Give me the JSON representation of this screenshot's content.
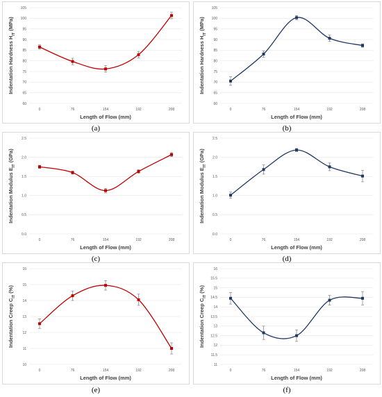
{
  "chart_data": [
    {
      "id": "a",
      "type": "line",
      "color": "#c00000",
      "categories": [
        "0",
        "76",
        "154",
        "192",
        "208"
      ],
      "values": [
        86.5,
        79.7,
        76.2,
        82.9,
        101.3
      ],
      "errors": [
        1.0,
        1.5,
        1.5,
        1.5,
        1.5
      ],
      "ylabel_main": "Indentation Hardness H",
      "ylabel_sub": "IT",
      "ylabel_unit": " (MPa)",
      "xlabel": "Length of Flow (mm)",
      "ylim": [
        60,
        105
      ],
      "yticks": [
        "60",
        "65",
        "70",
        "75",
        "80",
        "85",
        "90",
        "95",
        "100",
        "105"
      ],
      "panel_label": "(a)"
    },
    {
      "id": "b",
      "type": "line",
      "color": "#1f3864",
      "categories": [
        "0",
        "76",
        "154",
        "192",
        "208"
      ],
      "values": [
        70.5,
        83.2,
        100.3,
        90.6,
        87.2
      ],
      "errors": [
        2.0,
        1.5,
        1.0,
        1.5,
        0.8
      ],
      "ylabel_main": "Indentation Hardness H",
      "ylabel_sub": "IT",
      "ylabel_unit": " (MPa)",
      "xlabel": "Length of Flow (mm)",
      "ylim": [
        60,
        105
      ],
      "yticks": [
        "60",
        "65",
        "70",
        "75",
        "80",
        "85",
        "90",
        "95",
        "100",
        "105"
      ],
      "panel_label": "(b)"
    },
    {
      "id": "c",
      "type": "line",
      "color": "#c00000",
      "categories": [
        "0",
        "76",
        "154",
        "192",
        "208"
      ],
      "values": [
        1.75,
        1.6,
        1.13,
        1.63,
        2.07
      ],
      "errors": [
        0.04,
        0.04,
        0.06,
        0.05,
        0.05
      ],
      "ylabel_main": "Indentation Modulus E",
      "ylabel_sub": "IT",
      "ylabel_unit": " (GPa)",
      "xlabel": "Length of Flow (mm)",
      "ylim": [
        0,
        2.5
      ],
      "yticks": [
        "0.0",
        "0.5",
        "1.0",
        "1.5",
        "2.0",
        "2.5"
      ],
      "panel_label": "(c)"
    },
    {
      "id": "d",
      "type": "line",
      "color": "#1f3864",
      "categories": [
        "0",
        "76",
        "154",
        "192",
        "208"
      ],
      "values": [
        1.01,
        1.68,
        2.19,
        1.75,
        1.51
      ],
      "errors": [
        0.08,
        0.12,
        0.04,
        0.1,
        0.15
      ],
      "ylabel_main": "Indentation Modulus E",
      "ylabel_sub": "IT",
      "ylabel_unit": " (GPa)",
      "xlabel": "Length of Flow (mm)",
      "ylim": [
        0,
        2.5
      ],
      "yticks": [
        "0.0",
        "0.5",
        "1.0",
        "1.5",
        "2.0",
        "2.5"
      ],
      "panel_label": "(d)"
    },
    {
      "id": "e",
      "type": "line",
      "color": "#c00000",
      "categories": [
        "0",
        "76",
        "154",
        "192",
        "208"
      ],
      "values": [
        12.55,
        14.3,
        14.95,
        14.05,
        11.0
      ],
      "errors": [
        0.3,
        0.3,
        0.3,
        0.35,
        0.35
      ],
      "ylabel_main": "Indentation Creep C",
      "ylabel_sub": "IT",
      "ylabel_unit": " (%)",
      "xlabel": "Length of Flow (mm)",
      "ylim": [
        10,
        16
      ],
      "yticks": [
        "10",
        "11",
        "12",
        "13",
        "14",
        "15",
        "16"
      ],
      "panel_label": "(e)"
    },
    {
      "id": "f",
      "type": "line",
      "color": "#1f3864",
      "categories": [
        "0",
        "76",
        "154",
        "192",
        "208"
      ],
      "values": [
        14.45,
        12.65,
        12.5,
        14.35,
        14.45
      ],
      "errors": [
        0.3,
        0.35,
        0.3,
        0.25,
        0.35
      ],
      "ylabel_main": "Indentation Creep C",
      "ylabel_sub": "IT",
      "ylabel_unit": " (%)",
      "xlabel": "Length of Flow (mm)",
      "ylim": [
        11,
        16
      ],
      "yticks": [
        "11",
        "11.5",
        "12",
        "12.5",
        "13",
        "13.5",
        "14",
        "14.5",
        "15",
        "15.5",
        "16"
      ],
      "panel_label": "(f)"
    }
  ]
}
